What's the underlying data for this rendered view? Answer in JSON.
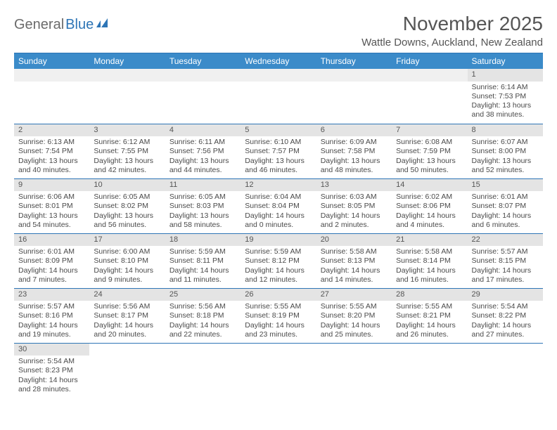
{
  "logo": {
    "gray": "General",
    "blue": "Blue"
  },
  "header": {
    "title": "November 2025",
    "location": "Wattle Downs, Auckland, New Zealand"
  },
  "colors": {
    "header_bg": "#3b8bc9",
    "divider": "#2e75b6",
    "daynum_bg": "#e4e4e4"
  },
  "weekdays": [
    "Sunday",
    "Monday",
    "Tuesday",
    "Wednesday",
    "Thursday",
    "Friday",
    "Saturday"
  ],
  "weeks": [
    [
      null,
      null,
      null,
      null,
      null,
      null,
      {
        "n": "1",
        "sr": "Sunrise: 6:14 AM",
        "ss": "Sunset: 7:53 PM",
        "d1": "Daylight: 13 hours",
        "d2": "and 38 minutes."
      }
    ],
    [
      {
        "n": "2",
        "sr": "Sunrise: 6:13 AM",
        "ss": "Sunset: 7:54 PM",
        "d1": "Daylight: 13 hours",
        "d2": "and 40 minutes."
      },
      {
        "n": "3",
        "sr": "Sunrise: 6:12 AM",
        "ss": "Sunset: 7:55 PM",
        "d1": "Daylight: 13 hours",
        "d2": "and 42 minutes."
      },
      {
        "n": "4",
        "sr": "Sunrise: 6:11 AM",
        "ss": "Sunset: 7:56 PM",
        "d1": "Daylight: 13 hours",
        "d2": "and 44 minutes."
      },
      {
        "n": "5",
        "sr": "Sunrise: 6:10 AM",
        "ss": "Sunset: 7:57 PM",
        "d1": "Daylight: 13 hours",
        "d2": "and 46 minutes."
      },
      {
        "n": "6",
        "sr": "Sunrise: 6:09 AM",
        "ss": "Sunset: 7:58 PM",
        "d1": "Daylight: 13 hours",
        "d2": "and 48 minutes."
      },
      {
        "n": "7",
        "sr": "Sunrise: 6:08 AM",
        "ss": "Sunset: 7:59 PM",
        "d1": "Daylight: 13 hours",
        "d2": "and 50 minutes."
      },
      {
        "n": "8",
        "sr": "Sunrise: 6:07 AM",
        "ss": "Sunset: 8:00 PM",
        "d1": "Daylight: 13 hours",
        "d2": "and 52 minutes."
      }
    ],
    [
      {
        "n": "9",
        "sr": "Sunrise: 6:06 AM",
        "ss": "Sunset: 8:01 PM",
        "d1": "Daylight: 13 hours",
        "d2": "and 54 minutes."
      },
      {
        "n": "10",
        "sr": "Sunrise: 6:05 AM",
        "ss": "Sunset: 8:02 PM",
        "d1": "Daylight: 13 hours",
        "d2": "and 56 minutes."
      },
      {
        "n": "11",
        "sr": "Sunrise: 6:05 AM",
        "ss": "Sunset: 8:03 PM",
        "d1": "Daylight: 13 hours",
        "d2": "and 58 minutes."
      },
      {
        "n": "12",
        "sr": "Sunrise: 6:04 AM",
        "ss": "Sunset: 8:04 PM",
        "d1": "Daylight: 14 hours",
        "d2": "and 0 minutes."
      },
      {
        "n": "13",
        "sr": "Sunrise: 6:03 AM",
        "ss": "Sunset: 8:05 PM",
        "d1": "Daylight: 14 hours",
        "d2": "and 2 minutes."
      },
      {
        "n": "14",
        "sr": "Sunrise: 6:02 AM",
        "ss": "Sunset: 8:06 PM",
        "d1": "Daylight: 14 hours",
        "d2": "and 4 minutes."
      },
      {
        "n": "15",
        "sr": "Sunrise: 6:01 AM",
        "ss": "Sunset: 8:07 PM",
        "d1": "Daylight: 14 hours",
        "d2": "and 6 minutes."
      }
    ],
    [
      {
        "n": "16",
        "sr": "Sunrise: 6:01 AM",
        "ss": "Sunset: 8:09 PM",
        "d1": "Daylight: 14 hours",
        "d2": "and 7 minutes."
      },
      {
        "n": "17",
        "sr": "Sunrise: 6:00 AM",
        "ss": "Sunset: 8:10 PM",
        "d1": "Daylight: 14 hours",
        "d2": "and 9 minutes."
      },
      {
        "n": "18",
        "sr": "Sunrise: 5:59 AM",
        "ss": "Sunset: 8:11 PM",
        "d1": "Daylight: 14 hours",
        "d2": "and 11 minutes."
      },
      {
        "n": "19",
        "sr": "Sunrise: 5:59 AM",
        "ss": "Sunset: 8:12 PM",
        "d1": "Daylight: 14 hours",
        "d2": "and 12 minutes."
      },
      {
        "n": "20",
        "sr": "Sunrise: 5:58 AM",
        "ss": "Sunset: 8:13 PM",
        "d1": "Daylight: 14 hours",
        "d2": "and 14 minutes."
      },
      {
        "n": "21",
        "sr": "Sunrise: 5:58 AM",
        "ss": "Sunset: 8:14 PM",
        "d1": "Daylight: 14 hours",
        "d2": "and 16 minutes."
      },
      {
        "n": "22",
        "sr": "Sunrise: 5:57 AM",
        "ss": "Sunset: 8:15 PM",
        "d1": "Daylight: 14 hours",
        "d2": "and 17 minutes."
      }
    ],
    [
      {
        "n": "23",
        "sr": "Sunrise: 5:57 AM",
        "ss": "Sunset: 8:16 PM",
        "d1": "Daylight: 14 hours",
        "d2": "and 19 minutes."
      },
      {
        "n": "24",
        "sr": "Sunrise: 5:56 AM",
        "ss": "Sunset: 8:17 PM",
        "d1": "Daylight: 14 hours",
        "d2": "and 20 minutes."
      },
      {
        "n": "25",
        "sr": "Sunrise: 5:56 AM",
        "ss": "Sunset: 8:18 PM",
        "d1": "Daylight: 14 hours",
        "d2": "and 22 minutes."
      },
      {
        "n": "26",
        "sr": "Sunrise: 5:55 AM",
        "ss": "Sunset: 8:19 PM",
        "d1": "Daylight: 14 hours",
        "d2": "and 23 minutes."
      },
      {
        "n": "27",
        "sr": "Sunrise: 5:55 AM",
        "ss": "Sunset: 8:20 PM",
        "d1": "Daylight: 14 hours",
        "d2": "and 25 minutes."
      },
      {
        "n": "28",
        "sr": "Sunrise: 5:55 AM",
        "ss": "Sunset: 8:21 PM",
        "d1": "Daylight: 14 hours",
        "d2": "and 26 minutes."
      },
      {
        "n": "29",
        "sr": "Sunrise: 5:54 AM",
        "ss": "Sunset: 8:22 PM",
        "d1": "Daylight: 14 hours",
        "d2": "and 27 minutes."
      }
    ],
    [
      {
        "n": "30",
        "sr": "Sunrise: 5:54 AM",
        "ss": "Sunset: 8:23 PM",
        "d1": "Daylight: 14 hours",
        "d2": "and 28 minutes."
      },
      null,
      null,
      null,
      null,
      null,
      null
    ]
  ]
}
